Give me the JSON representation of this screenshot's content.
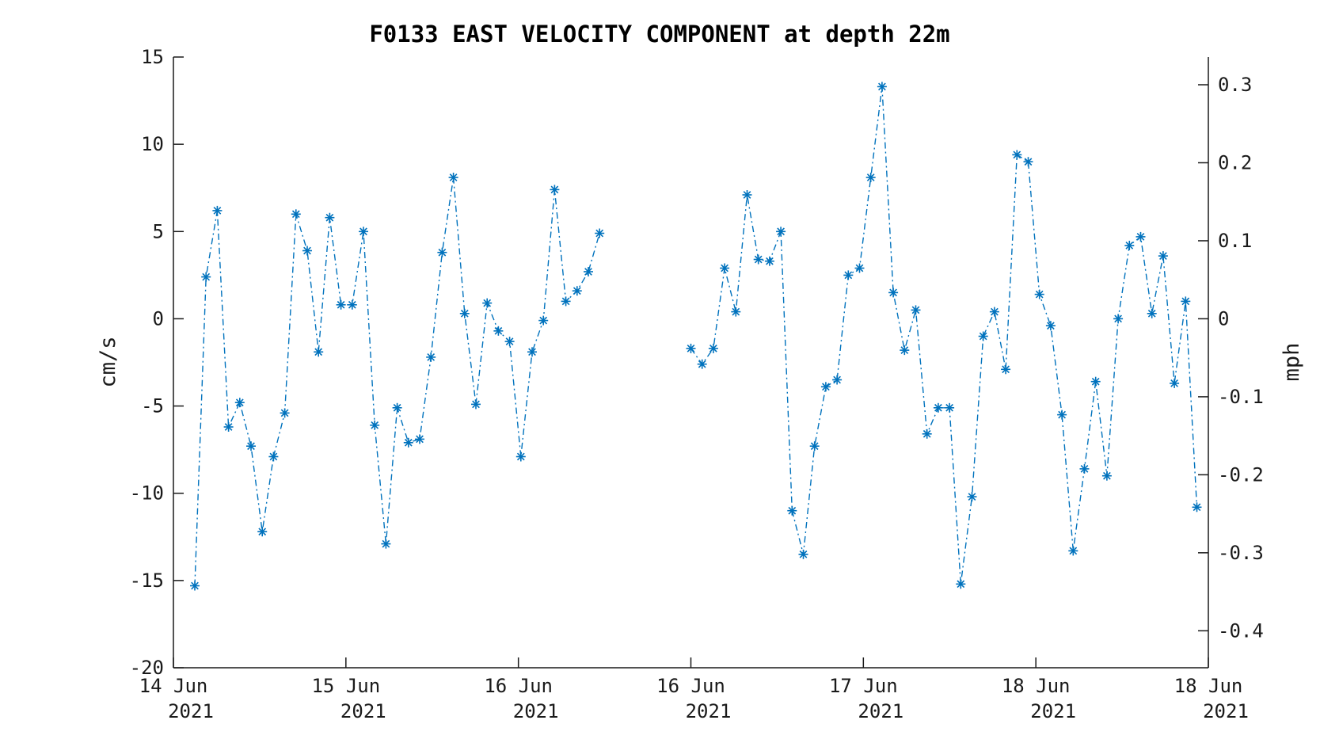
{
  "chart_data": {
    "type": "line",
    "title": "F0133 EAST VELOCITY COMPONENT at depth 22m",
    "ylabel": "cm/s",
    "y2label": "mph",
    "ylim": [
      -20,
      15
    ],
    "yticks": [
      "15",
      "10",
      "5",
      "0",
      "-5",
      "-10",
      "-15",
      "-20"
    ],
    "y2ticks": [
      "0.3",
      "0.2",
      "0.1",
      "0",
      "-0.1",
      "-0.2",
      "-0.3",
      "-0.4"
    ],
    "xticks": [
      {
        "day": "14 Jun",
        "year": "2021"
      },
      {
        "day": "15 Jun",
        "year": "2021"
      },
      {
        "day": "16 Jun",
        "year": "2021"
      },
      {
        "day": "16 Jun",
        "year": "2021"
      },
      {
        "day": "17 Jun",
        "year": "2021"
      },
      {
        "day": "18 Jun",
        "year": "2021"
      },
      {
        "day": "18 Jun",
        "year": "2021"
      }
    ],
    "grid": false,
    "line_style": "dash-dot",
    "marker": "asterisk",
    "color": "#0072BD",
    "series": [
      {
        "values": [
          -15.3,
          2.4,
          6.2,
          -6.2,
          -4.8,
          -7.3,
          -12.2,
          -7.9,
          -5.4,
          6.0,
          3.9,
          -1.9,
          5.8,
          0.8,
          0.8,
          5.0,
          -6.1,
          -12.9,
          -5.1,
          -7.1,
          -6.9,
          -2.2,
          3.8,
          8.1,
          0.3,
          -4.9,
          0.9,
          -0.7,
          -1.3,
          -7.9,
          -1.9,
          -0.1,
          7.4,
          1.0,
          1.6,
          2.7,
          4.9
        ]
      },
      {
        "values": [
          -1.7,
          -2.6,
          -1.7,
          2.9,
          0.4,
          7.1,
          3.4,
          3.3,
          5.0,
          -11.0,
          -13.5,
          -7.3,
          -3.9,
          -3.5,
          2.5,
          2.9,
          8.1,
          13.3,
          1.5,
          -1.8,
          0.5,
          -6.6,
          -5.1,
          -5.1,
          -15.2,
          -10.2,
          -1.0,
          0.4,
          -2.9,
          9.4,
          9.0,
          1.4,
          -0.4,
          -5.5,
          -13.3,
          -8.6,
          -3.6,
          -9.0,
          0.0,
          4.2,
          4.7,
          0.3,
          3.6,
          -3.7,
          1.0,
          -10.8
        ]
      }
    ]
  }
}
